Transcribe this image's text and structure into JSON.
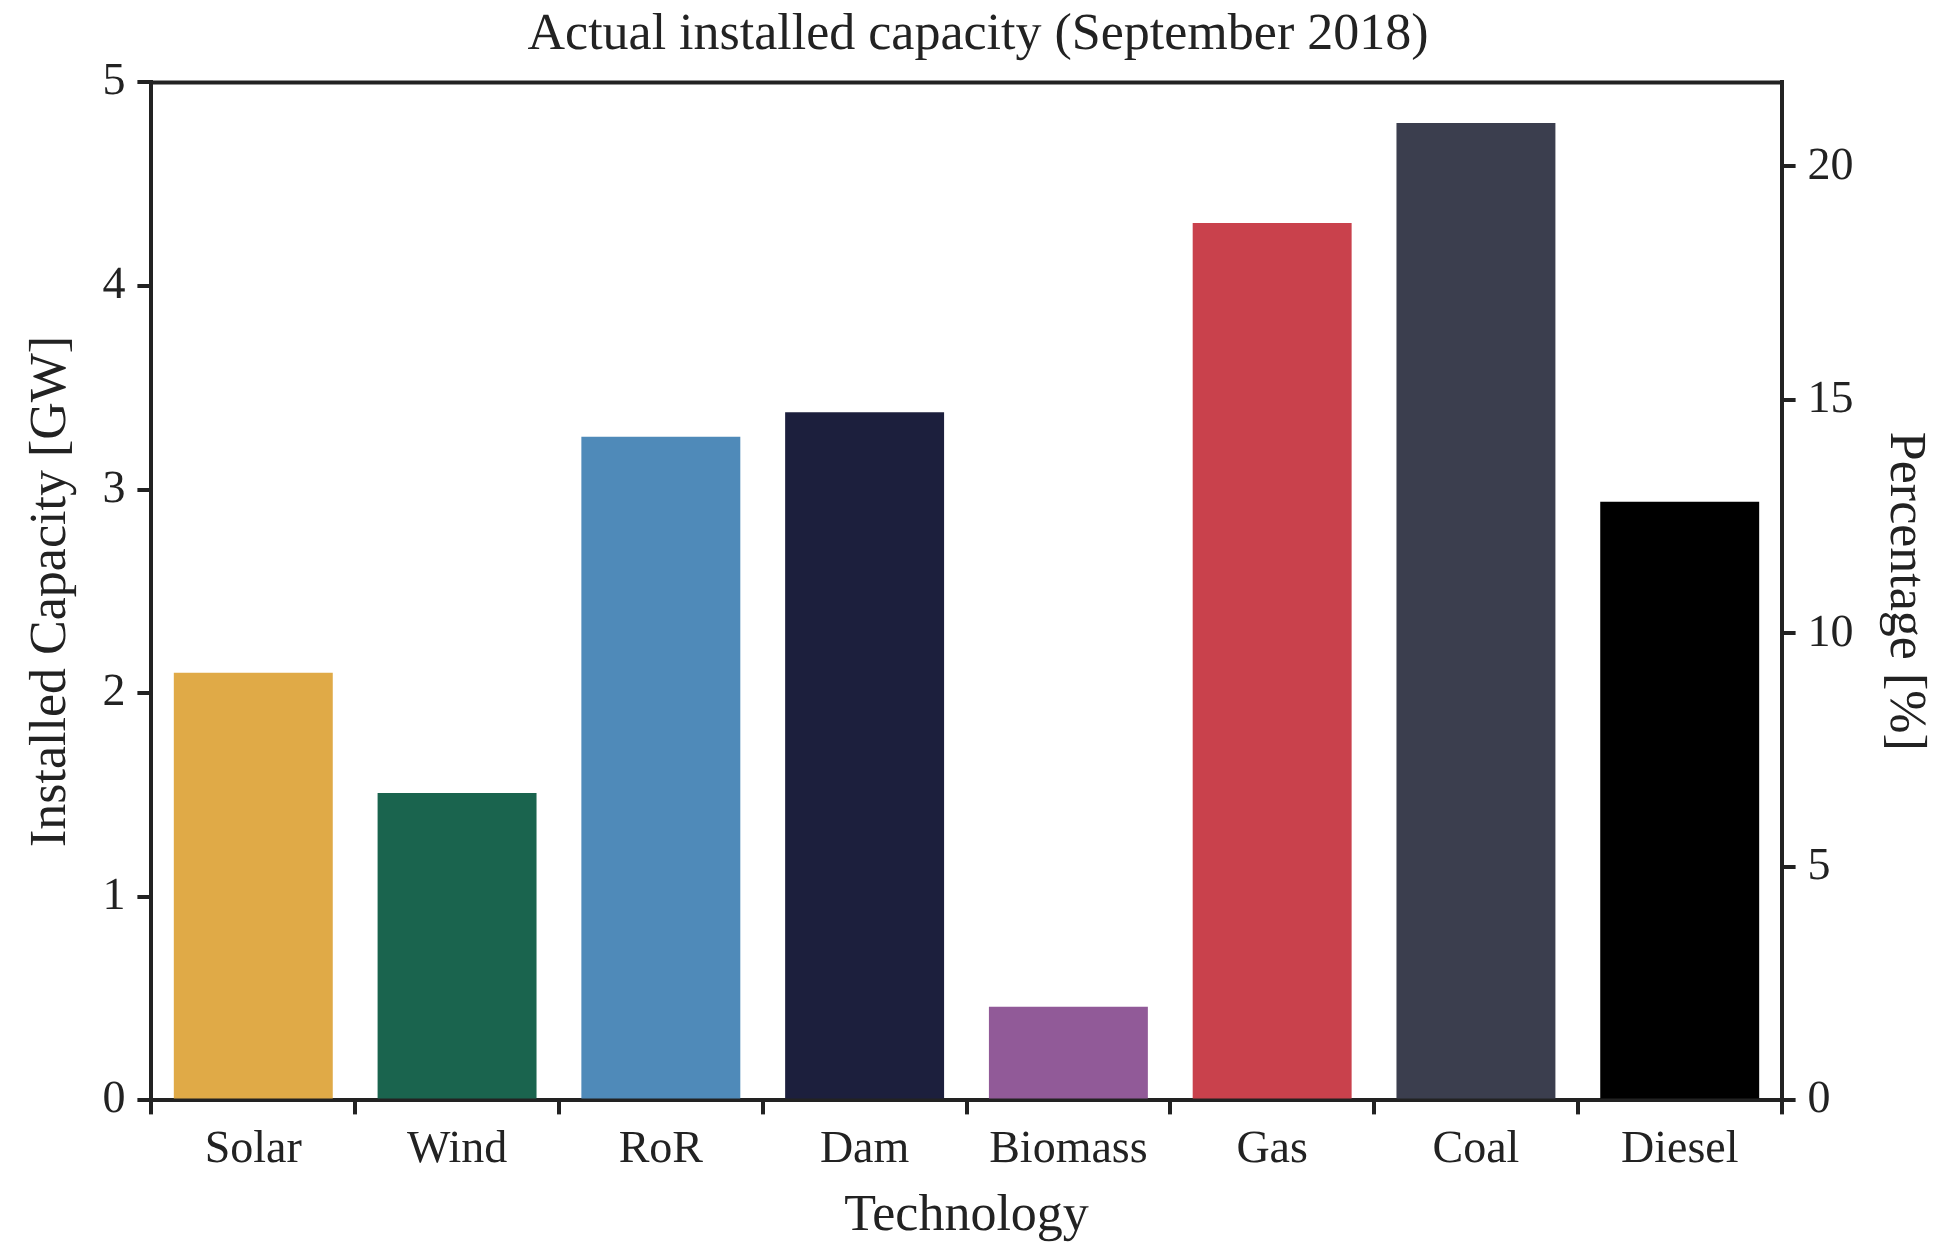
{
  "chart_data": {
    "type": "bar",
    "title": "Actual installed capacity (September 2018)",
    "xlabel": "Technology",
    "ylabel": "Installed Capacity [GW]",
    "y2label": "Percentage [%]",
    "categories": [
      "Solar",
      "Wind",
      "RoR",
      "Dam",
      "Biomass",
      "Gas",
      "Coal",
      "Diesel"
    ],
    "values": [
      2.1,
      1.51,
      3.26,
      3.38,
      0.46,
      4.31,
      4.8,
      2.94
    ],
    "colors": [
      "#e0aa47",
      "#1a644e",
      "#4f8ab9",
      "#1c1f3d",
      "#915a98",
      "#c9414c",
      "#3b3e4e",
      "#000000"
    ],
    "ylim": [
      0,
      5
    ],
    "yticks": [
      0,
      1,
      2,
      3,
      4,
      5
    ],
    "y2lim": [
      0,
      21.8
    ],
    "y2ticks": [
      0,
      5,
      10,
      15,
      20
    ],
    "grid": false,
    "legend": false
  }
}
